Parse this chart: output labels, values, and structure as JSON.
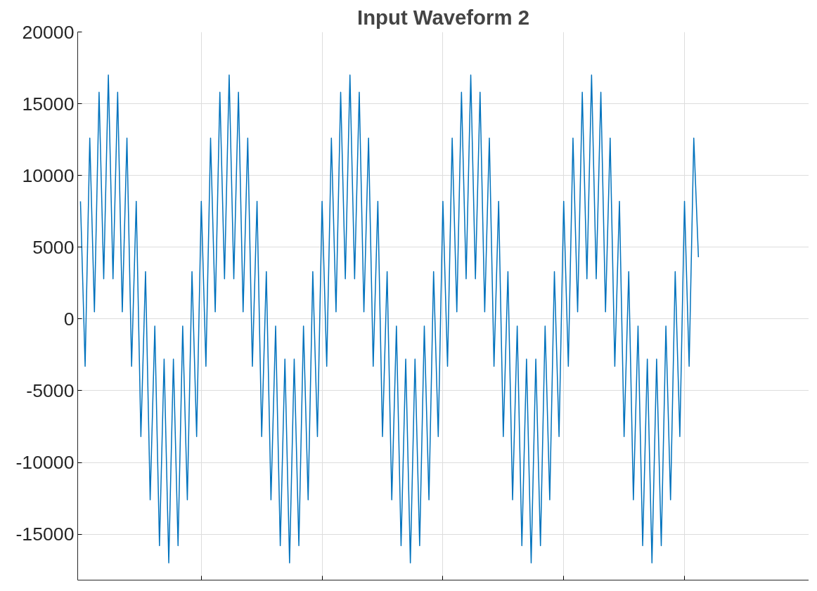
{
  "chart_data": {
    "type": "line",
    "title": "Input Waveform 2",
    "categories": [
      null,
      null,
      null,
      null,
      null,
      null,
      null,
      null,
      null,
      null,
      null,
      null,
      null,
      null,
      null,
      null,
      null,
      null,
      null,
      null,
      null,
      null,
      null,
      null,
      null,
      null,
      null,
      null,
      null,
      null,
      null,
      null,
      null,
      null,
      null,
      null,
      null,
      null,
      null,
      null,
      null,
      null,
      null,
      null,
      null,
      null,
      null,
      null,
      null,
      null,
      null,
      null,
      null,
      null,
      null,
      null,
      null,
      null,
      null,
      null,
      null,
      null,
      null,
      null,
      null,
      null,
      null,
      null,
      null,
      null,
      null,
      null,
      null,
      null,
      null,
      null,
      null,
      null,
      null,
      null,
      null,
      null,
      null,
      null,
      null,
      null,
      null,
      null,
      null,
      null,
      null,
      null,
      null,
      null,
      null,
      null,
      null,
      null,
      null,
      null,
      null,
      null,
      null,
      null,
      null,
      null,
      null,
      null,
      null,
      null,
      null,
      null,
      null,
      null,
      null,
      null,
      null,
      null,
      null,
      null,
      null,
      null,
      null,
      null,
      null,
      null,
      null,
      null,
      null,
      null,
      null,
      null,
      null,
      null
    ],
    "series": [
      {
        "color": "#0072bd",
        "values": [
          8200,
          -3300,
          12600,
          500,
          15800,
          2800,
          17000,
          2800,
          15800,
          500,
          12600,
          -3300,
          8200,
          -8200,
          3300,
          -12600,
          -500,
          -15800,
          -2800,
          -17000,
          -2800,
          -15800,
          -500,
          -12600,
          3300,
          -8200,
          8200,
          -3300,
          12600,
          500,
          15800,
          2800,
          17000,
          2800,
          15800,
          500,
          12600,
          -3300,
          8200,
          -8200,
          3300,
          -12600,
          -500,
          -15800,
          -2800,
          -17000,
          -2800,
          -15800,
          -500,
          -12600,
          3300,
          -8200,
          8200,
          -3300,
          12600,
          500,
          15800,
          2800,
          17000,
          2800,
          15800,
          500,
          12600,
          -3300,
          8200,
          -8200,
          3300,
          -12600,
          -500,
          -15800,
          -2800,
          -17000,
          -2800,
          -15800,
          -500,
          -12600,
          3300,
          -8200,
          8200,
          -3300,
          12600,
          500,
          15800,
          2800,
          17000,
          2800,
          15800,
          500,
          12600,
          -3300,
          8200,
          -8200,
          3300,
          -12600,
          -500,
          -15800,
          -2800,
          -17000,
          -2800,
          -15800,
          -500,
          -12600,
          3300,
          -8200,
          8200,
          -3300,
          12600,
          500,
          15800,
          2800,
          17000,
          2800,
          15800,
          500,
          12600,
          -3300,
          8200,
          -8200,
          3300,
          -12600,
          -500,
          -15800,
          -2800,
          -17000,
          -2800,
          -15800,
          -500,
          -12600,
          3300,
          -8200,
          8200,
          -3300,
          12600,
          4300
        ]
      }
    ],
    "ylim": [
      -18200,
      20000
    ],
    "yticks": [
      -15000,
      -10000,
      -5000,
      0,
      5000,
      10000,
      15000,
      20000
    ],
    "grid": true,
    "marker": "none",
    "line_style": "solid"
  }
}
